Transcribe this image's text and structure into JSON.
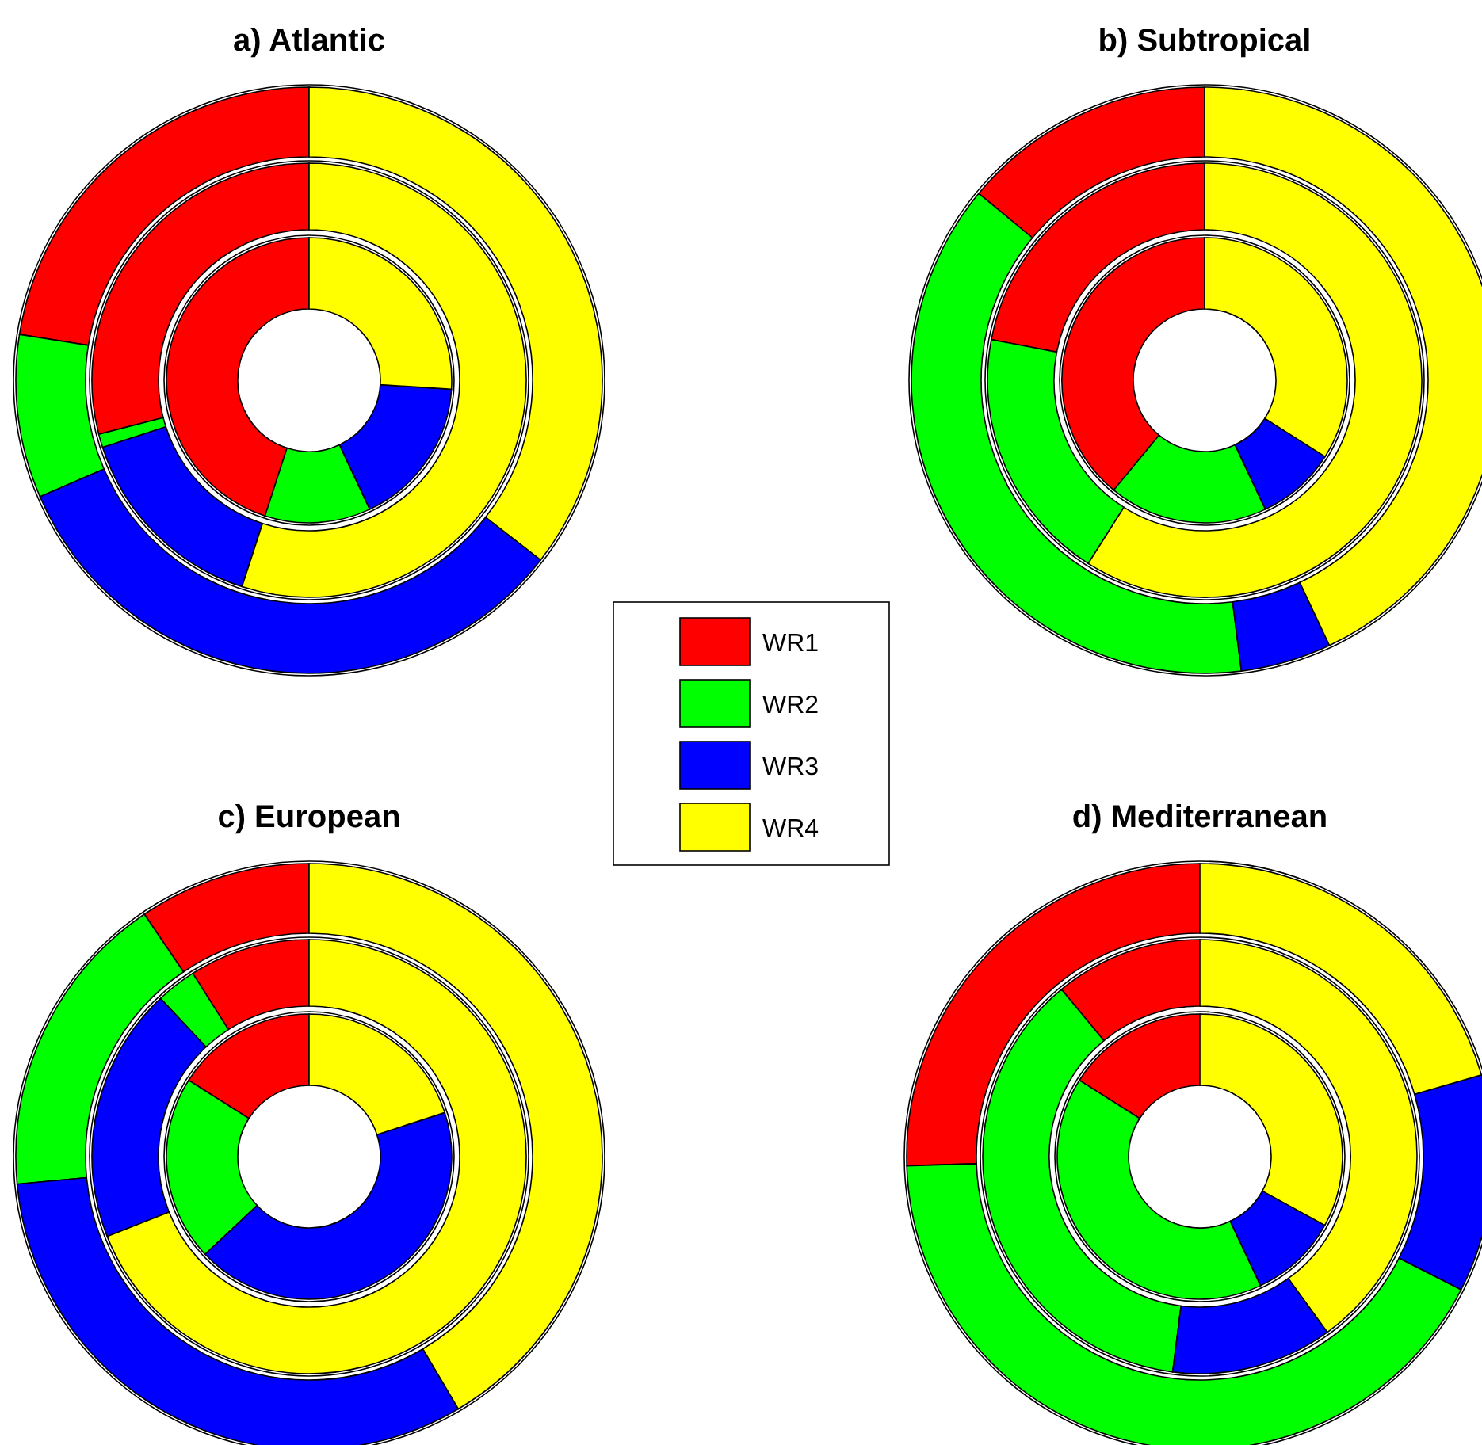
{
  "chart_data": [
    {
      "type": "donut",
      "title": "a) Atlantic",
      "categories": [
        "WR1",
        "WR2",
        "WR3",
        "WR4"
      ],
      "colors": [
        "#ff0000",
        "#00ff00",
        "#0000ff",
        "#ffff00"
      ],
      "legend": "bottom right",
      "series": [
        {
          "values": [
            45,
            12,
            17,
            26
          ]
        },
        {
          "values": [
            29,
            1,
            15,
            55
          ]
        },
        {
          "values": [
            22.5,
            9,
            33,
            35.5
          ]
        }
      ]
    },
    {
      "type": "donut",
      "title": "b) Subtropical",
      "colors": [
        "#ff0000",
        "#00ff00",
        "#0000ff",
        "#ffff00"
      ],
      "series": [
        {
          "values": [
            39,
            18,
            9,
            34
          ]
        },
        {
          "values": [
            22,
            19,
            0,
            59
          ]
        },
        {
          "values": [
            14,
            38,
            5,
            43
          ]
        }
      ]
    },
    {
      "type": "donut",
      "title": "c) European",
      "colors": [
        "#ff0000",
        "#00ff00",
        "#0000ff",
        "#ffff00"
      ],
      "series": [
        {
          "values": [
            16,
            21,
            43,
            20
          ]
        },
        {
          "values": [
            9,
            3,
            19,
            69
          ]
        },
        {
          "values": [
            9.5,
            17,
            32,
            41.5
          ]
        }
      ]
    },
    {
      "type": "donut",
      "title": "d) Mediterranean",
      "colors": [
        "#ff0000",
        "#00ff00",
        "#0000ff",
        "#ffff00"
      ],
      "series": [
        {
          "values": [
            16,
            41,
            10,
            33
          ]
        },
        {
          "values": [
            11,
            37,
            12,
            40
          ]
        },
        {
          "values": [
            25.5,
            42,
            12,
            20.5
          ]
        }
      ]
    }
  ]
}
